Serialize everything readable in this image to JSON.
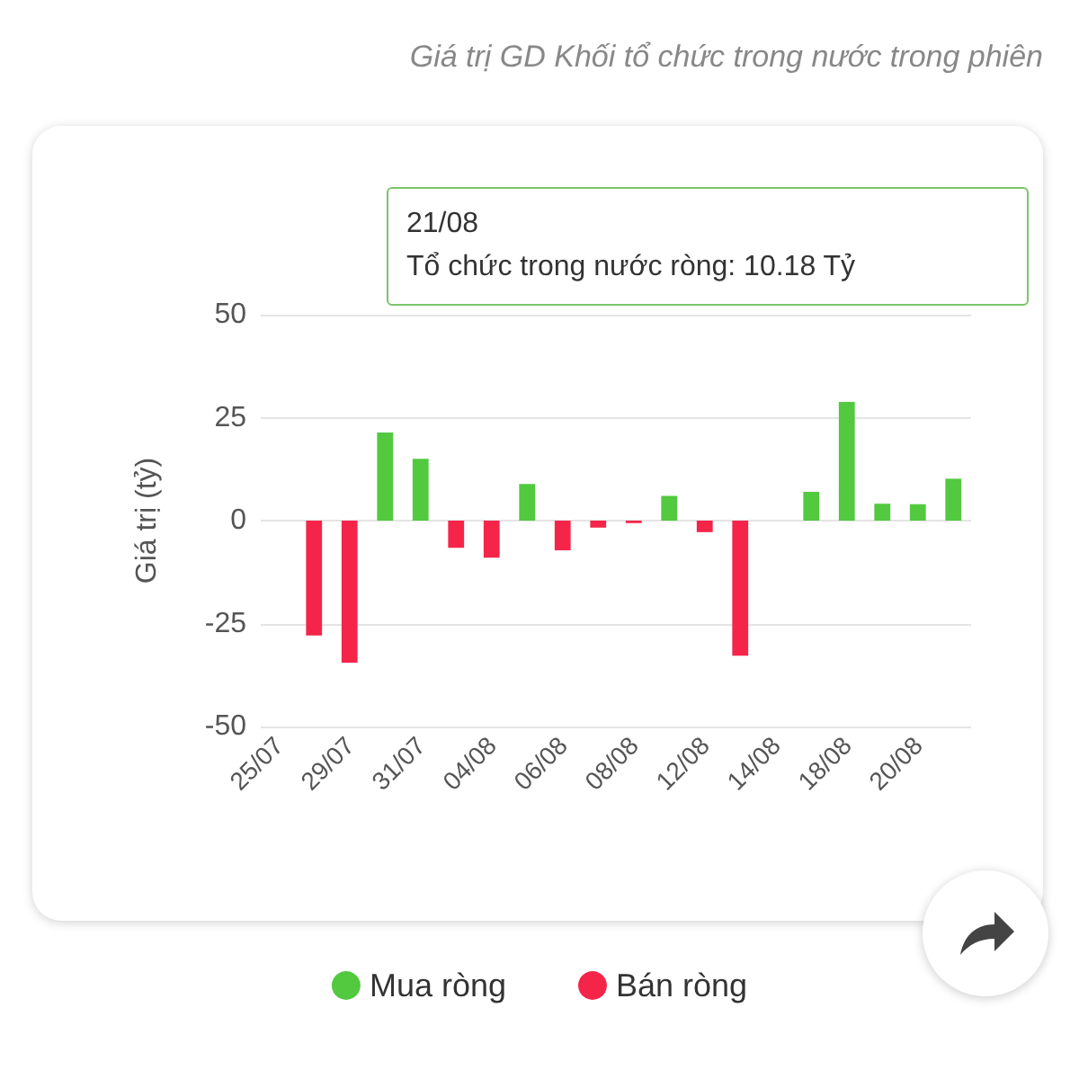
{
  "chart_data": {
    "type": "bar",
    "title": "Giá trị GD Khối tổ chức trong nước trong phiên",
    "ylabel": "Giá trị (tỷ)",
    "categories": [
      "25/07",
      null,
      "29/07",
      null,
      "31/07",
      null,
      "04/08",
      null,
      "06/08",
      null,
      "08/08",
      null,
      "12/08",
      null,
      "14/08",
      null,
      "18/08",
      null,
      "20/08",
      null
    ],
    "series": [
      {
        "name": "Mua ròng",
        "color": "#52c93f",
        "values": [
          null,
          null,
          null,
          21.4,
          15,
          null,
          null,
          8.9,
          null,
          null,
          null,
          6,
          null,
          null,
          null,
          7,
          28.8,
          4.1,
          4,
          10.18
        ]
      },
      {
        "name": "Bán ròng",
        "color": "#f5254a",
        "values": [
          null,
          -27.9,
          -34.5,
          null,
          null,
          -6.6,
          -9,
          null,
          -7.2,
          -1.7,
          -0.6,
          null,
          -2.8,
          -32.8,
          null,
          null,
          null,
          null,
          null,
          null
        ]
      }
    ],
    "stacked": true,
    "ylim": [
      -50,
      50
    ],
    "yticks": [
      -50,
      -25,
      0,
      25,
      50
    ],
    "grid": "y",
    "legend": "bottom",
    "annotations": [
      "21/08",
      "Tổ chức trong nước ròng: 10.18 Tỷ"
    ]
  }
}
